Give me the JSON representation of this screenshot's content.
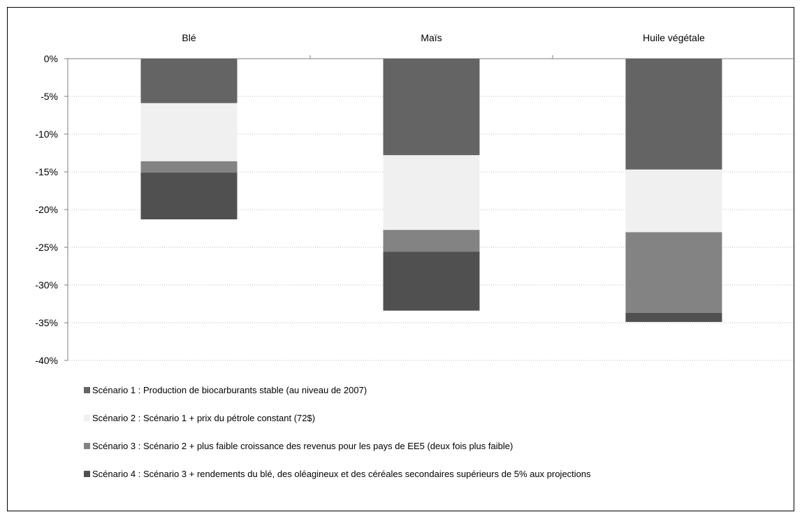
{
  "chart_data": {
    "type": "bar",
    "stacked": true,
    "categories": [
      "Blé",
      "Maïs",
      "Huile végétale"
    ],
    "y_ticks": [
      "0%",
      "-5%",
      "-10%",
      "-15%",
      "-20%",
      "-25%",
      "-30%",
      "-35%",
      "-40%"
    ],
    "ylim": [
      -40,
      0
    ],
    "grid": true,
    "legend_position": "bottom",
    "series": [
      {
        "name": "Scénario 1 : Production de biocarburants stable (au niveau de 2007)",
        "color": "#646464",
        "values": [
          -5.9,
          -12.8,
          -14.7
        ]
      },
      {
        "name": "Scénario 2 : Scénario 1 + prix du pétrole constant (72$)",
        "color": "#f0f0f0",
        "values": [
          -7.7,
          -9.9,
          -8.3
        ]
      },
      {
        "name": "Scénario 3 : Scénario 2 + plus faible croissance des revenus pour les pays de EE5 (deux fois plus faible)",
        "color": "#838383",
        "values": [
          -1.5,
          -2.9,
          -10.7
        ]
      },
      {
        "name": "Scénario 4 : Scénario 3 + rendements du blé, des oléagineux et des céréales secondaires supérieurs de 5% aux projections",
        "color": "#505050",
        "values": [
          -6.2,
          -7.8,
          -1.2
        ]
      }
    ]
  }
}
